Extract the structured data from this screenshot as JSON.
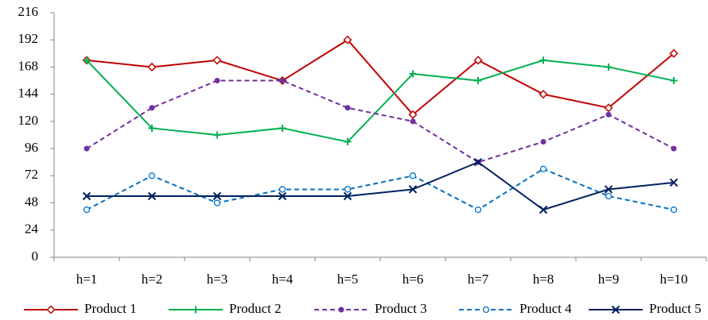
{
  "chart_data": {
    "type": "line",
    "categories": [
      "h=1",
      "h=2",
      "h=3",
      "h=4",
      "h=5",
      "h=6",
      "h=7",
      "h=8",
      "h=9",
      "h=10"
    ],
    "series": [
      {
        "name": "Product 1",
        "color": "#c00000",
        "marker": "diamond",
        "dash": false,
        "values": [
          174,
          168,
          174,
          156,
          192,
          126,
          174,
          144,
          132,
          180
        ]
      },
      {
        "name": "Product 2",
        "color": "#00b050",
        "marker": "plus",
        "dash": false,
        "values": [
          174,
          114,
          108,
          114,
          102,
          162,
          156,
          174,
          168,
          156
        ]
      },
      {
        "name": "Product 3",
        "color": "#7030a0",
        "marker": "dot",
        "dash": true,
        "values": [
          96,
          132,
          156,
          156,
          132,
          120,
          84,
          102,
          126,
          96
        ]
      },
      {
        "name": "Product 4",
        "color": "#0070c0",
        "marker": "circle",
        "dash": true,
        "values": [
          42,
          72,
          48,
          60,
          60,
          72,
          42,
          78,
          54,
          42
        ]
      },
      {
        "name": "Product 5",
        "color": "#002060",
        "marker": "x",
        "dash": false,
        "values": [
          54,
          54,
          54,
          54,
          54,
          60,
          84,
          42,
          60,
          66
        ]
      }
    ],
    "ylim": [
      0,
      216
    ],
    "yticks": [
      0,
      24,
      48,
      72,
      96,
      120,
      144,
      168,
      192,
      216
    ],
    "grid": false,
    "legend": "bottom"
  }
}
